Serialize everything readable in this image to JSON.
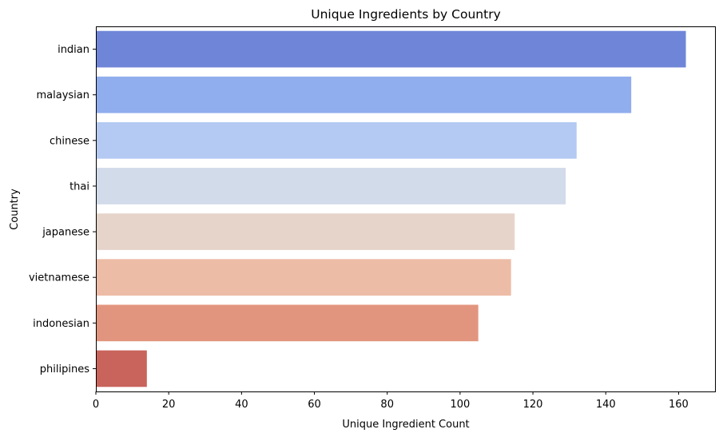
{
  "chart_data": {
    "type": "bar",
    "orientation": "horizontal",
    "title": "Unique Ingredients by Country",
    "xlabel": "Unique Ingredient Count",
    "ylabel": "Country",
    "categories": [
      "indian",
      "malaysian",
      "chinese",
      "thai",
      "japanese",
      "vietnamese",
      "indonesian",
      "philipines"
    ],
    "values": [
      162,
      147,
      132,
      129,
      115,
      114,
      105,
      14
    ],
    "colors": [
      "#6f86d8",
      "#90adee",
      "#b4caf3",
      "#d2dbea",
      "#e6d4cb",
      "#edbca6",
      "#e2957e",
      "#c8645b"
    ],
    "xlim": [
      0,
      170
    ],
    "xticks": [
      0,
      20,
      40,
      60,
      80,
      100,
      120,
      140,
      160
    ],
    "grid": false,
    "legend": "none"
  }
}
